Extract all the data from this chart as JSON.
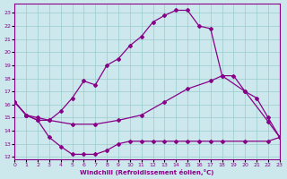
{
  "xlabel": "Windchill (Refroidissement éolien,°C)",
  "xlim": [
    0,
    23
  ],
  "ylim": [
    11.8,
    23.7
  ],
  "yticks": [
    12,
    13,
    14,
    15,
    16,
    17,
    18,
    19,
    20,
    21,
    22,
    23
  ],
  "xticks": [
    0,
    1,
    2,
    3,
    4,
    5,
    6,
    7,
    8,
    9,
    10,
    11,
    12,
    13,
    14,
    15,
    16,
    17,
    18,
    19,
    20,
    21,
    22,
    23
  ],
  "background_color": "#cce8ec",
  "grid_color": "#99cccc",
  "line_color": "#880088",
  "line1_x": [
    0,
    1,
    2,
    3,
    4,
    5,
    6,
    7,
    8,
    9,
    10,
    11,
    12,
    13,
    14,
    15,
    16,
    17,
    18,
    19,
    20,
    21,
    22,
    23
  ],
  "line1_y": [
    16.2,
    15.2,
    14.8,
    14.8,
    15.5,
    16.5,
    17.8,
    17.5,
    19.0,
    19.5,
    20.5,
    21.2,
    22.3,
    22.8,
    23.2,
    23.2,
    22.0,
    21.8,
    18.2,
    18.2,
    17.0,
    16.5,
    15.0,
    13.5
  ],
  "line2_x": [
    0,
    1,
    2,
    3,
    5,
    7,
    9,
    11,
    13,
    15,
    17,
    18,
    20,
    22,
    23
  ],
  "line2_y": [
    16.2,
    15.2,
    15.0,
    14.8,
    14.5,
    14.5,
    14.8,
    15.2,
    16.2,
    17.2,
    17.8,
    18.2,
    17.0,
    14.7,
    13.5
  ],
  "line3_x": [
    0,
    1,
    2,
    3,
    4,
    5,
    6,
    7,
    8,
    9,
    10,
    11,
    12,
    13,
    14,
    15,
    16,
    17,
    18,
    20,
    22,
    23
  ],
  "line3_y": [
    16.2,
    15.2,
    14.8,
    13.5,
    12.8,
    12.2,
    12.2,
    12.2,
    12.5,
    13.0,
    13.2,
    13.2,
    13.2,
    13.2,
    13.2,
    13.2,
    13.2,
    13.2,
    13.2,
    13.2,
    13.2,
    13.5
  ]
}
